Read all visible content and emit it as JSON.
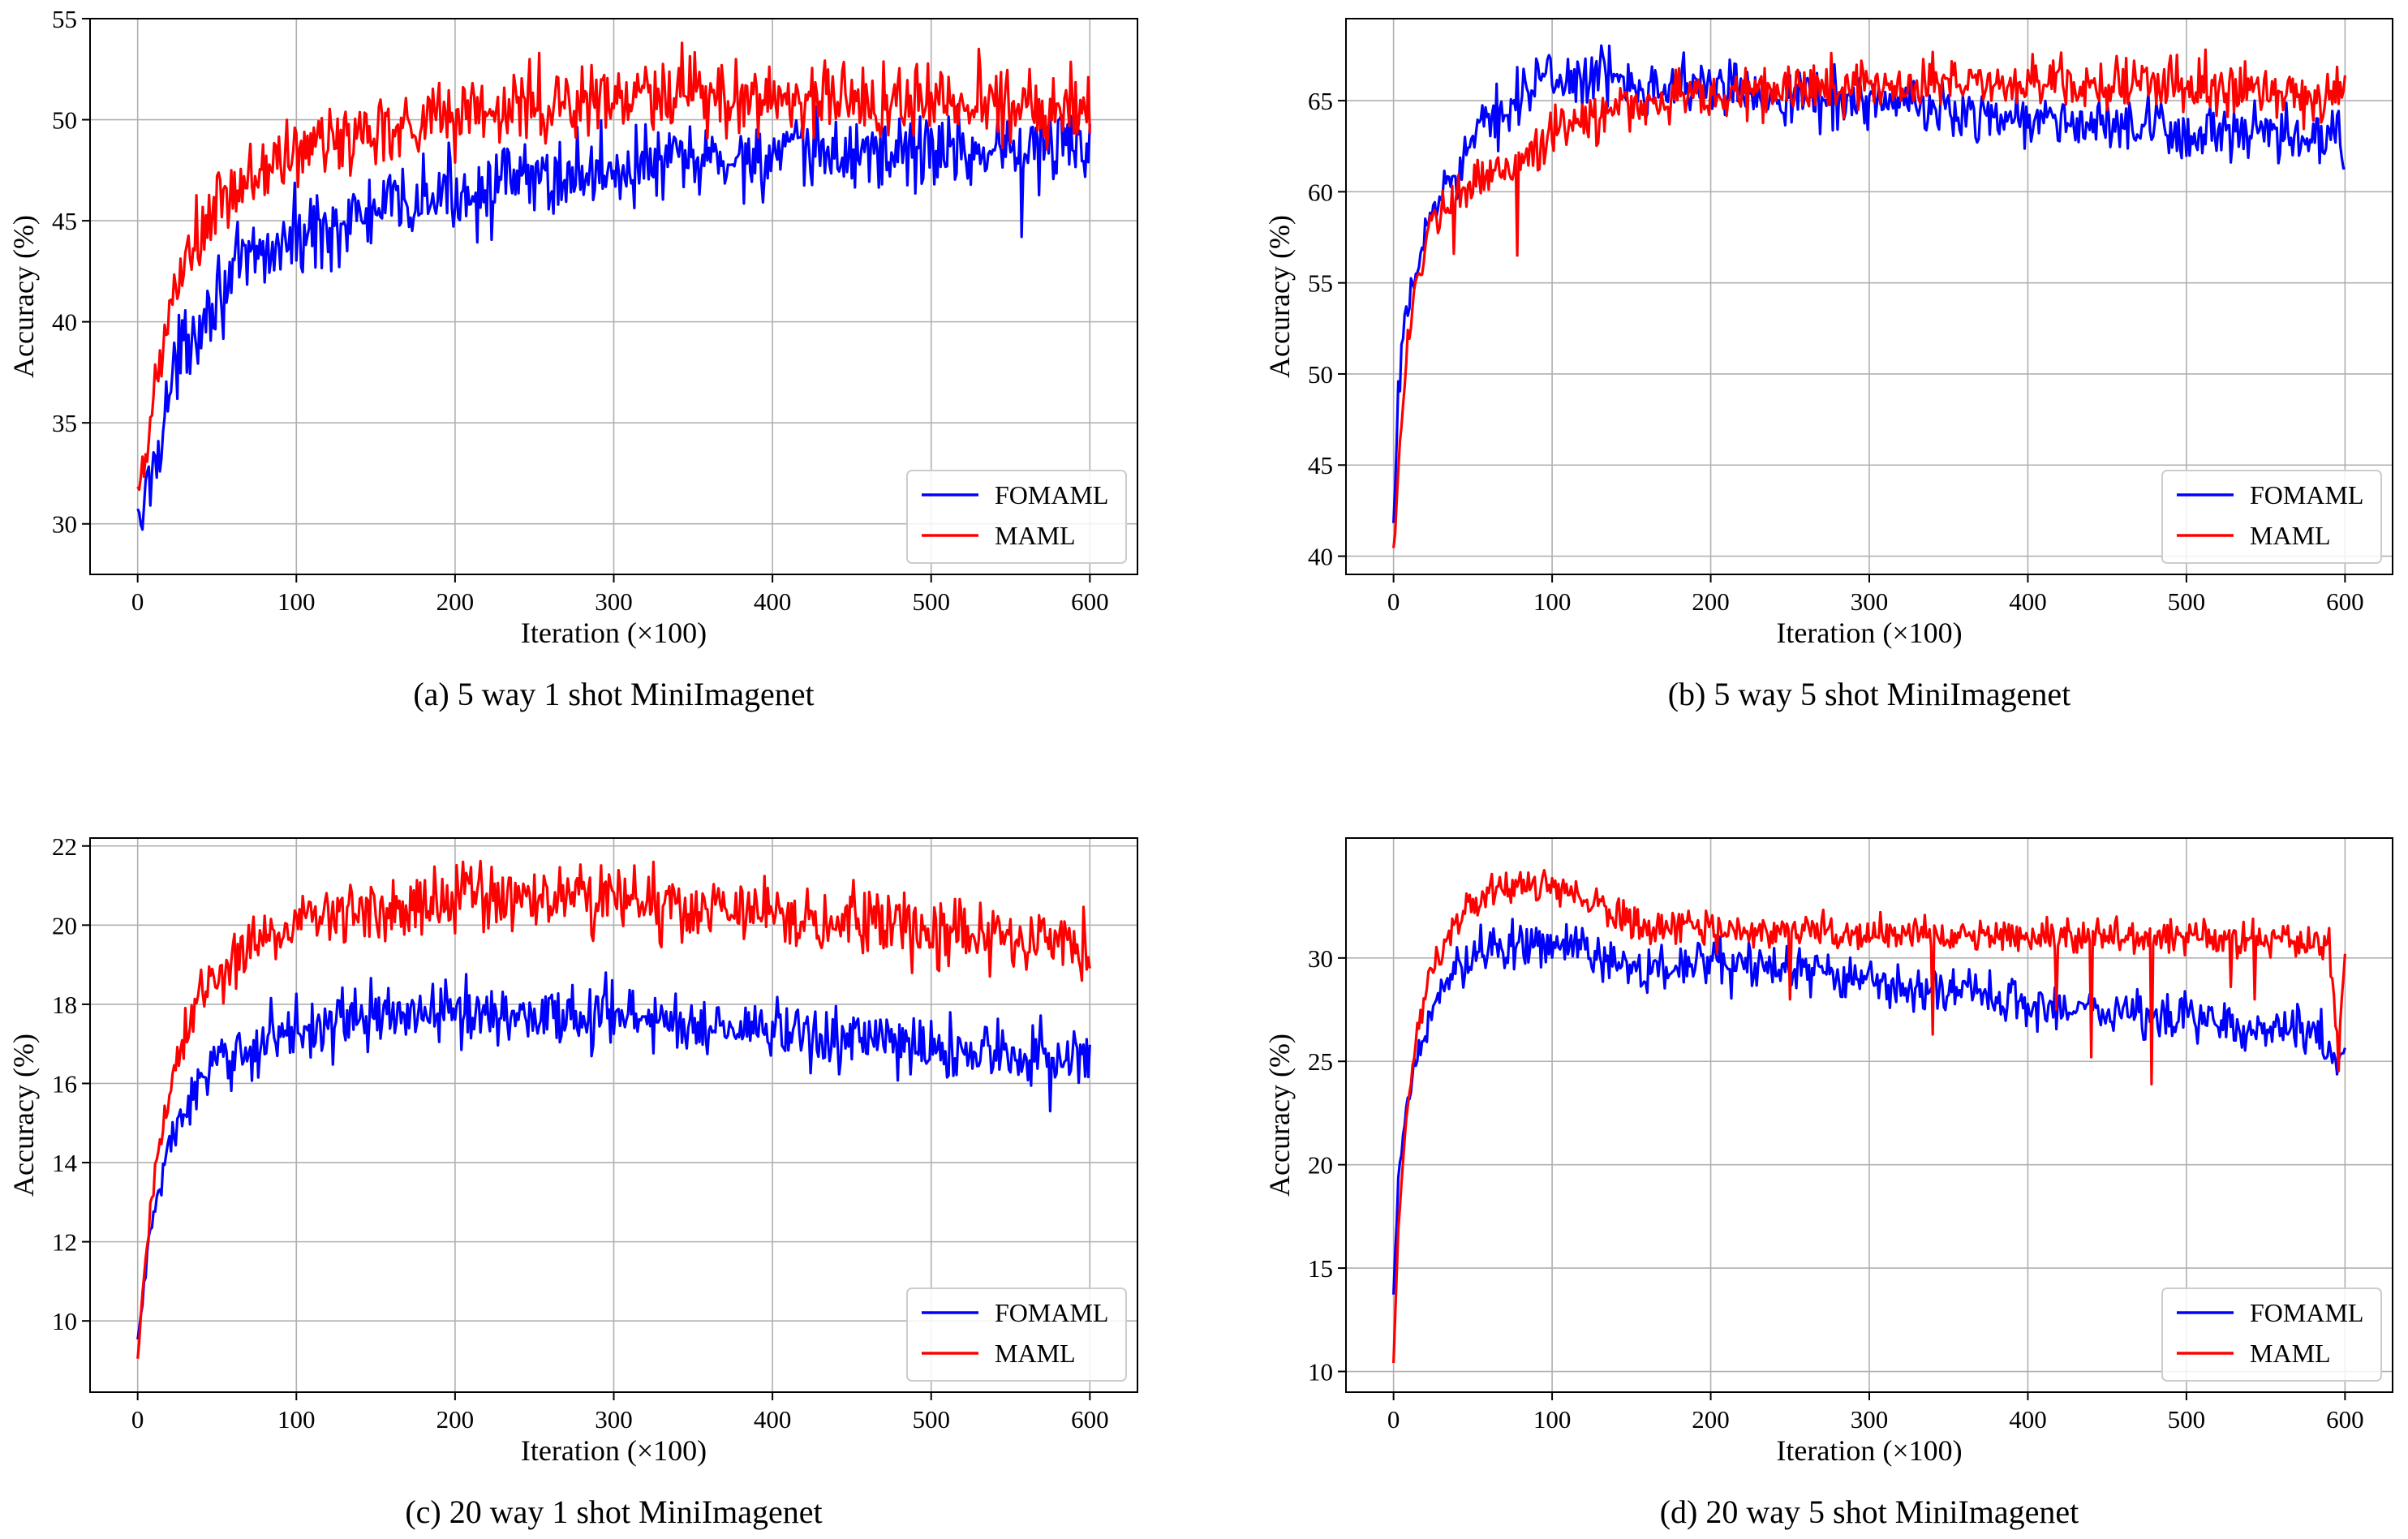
{
  "chart_data": [
    {
      "type": "line",
      "caption": "(a) 5 way 1 shot MiniImagenet",
      "xlabel": "Iteration (×100)",
      "ylabel": "Accuracy (%)",
      "xlim": [
        -30,
        630
      ],
      "ylim": [
        27.5,
        55
      ],
      "xticks": [
        0,
        100,
        200,
        300,
        400,
        500,
        600
      ],
      "yticks": [
        30,
        35,
        40,
        45,
        50,
        55
      ],
      "grid": true,
      "legend_position": "bottom-right",
      "series": [
        {
          "name": "FOMAML",
          "color": "#0000ff",
          "profile": [
            [
              0,
              29.5
            ],
            [
              3,
              30.5
            ],
            [
              10,
              33
            ],
            [
              20,
              36.5
            ],
            [
              30,
              39
            ],
            [
              50,
              41.5
            ],
            [
              75,
              43.2
            ],
            [
              100,
              44.2
            ],
            [
              150,
              45.4
            ],
            [
              200,
              46.4
            ],
            [
              300,
              47.6
            ],
            [
              400,
              48.2
            ],
            [
              500,
              48.5
            ],
            [
              600,
              48.7
            ]
          ],
          "noise": 1.4,
          "noise_start": 1.0,
          "spikes": [
            [
              557,
              44.2
            ]
          ]
        },
        {
          "name": "MAML",
          "color": "#ff0000",
          "profile": [
            [
              0,
              30.5
            ],
            [
              3,
              32
            ],
            [
              10,
              36
            ],
            [
              20,
              40.5
            ],
            [
              30,
              43
            ],
            [
              50,
              45.5
            ],
            [
              75,
              47.3
            ],
            [
              100,
              48.4
            ],
            [
              150,
              49.6
            ],
            [
              200,
              50.3
            ],
            [
              300,
              51.0
            ],
            [
              400,
              51.1
            ],
            [
              500,
              50.9
            ],
            [
              600,
              50.8
            ]
          ],
          "noise": 1.4,
          "noise_start": 1.0,
          "spikes": [
            [
              343,
              53.8
            ],
            [
              253,
              53.3
            ],
            [
              530,
              53.5
            ]
          ]
        }
      ]
    },
    {
      "type": "line",
      "caption": "(b) 5 way 5 shot MiniImagenet",
      "xlabel": "Iteration (×100)",
      "ylabel": "Accuracy (%)",
      "xlim": [
        -30,
        630
      ],
      "ylim": [
        39,
        69.5
      ],
      "xticks": [
        0,
        100,
        200,
        300,
        400,
        500,
        600
      ],
      "yticks": [
        40,
        45,
        50,
        55,
        60,
        65
      ],
      "grid": true,
      "legend_position": "bottom-right",
      "series": [
        {
          "name": "FOMAML",
          "color": "#0000ff",
          "profile": [
            [
              0,
              41
            ],
            [
              3,
              49
            ],
            [
              8,
              53
            ],
            [
              15,
              56
            ],
            [
              25,
              59
            ],
            [
              40,
              61.5
            ],
            [
              60,
              63.8
            ],
            [
              80,
              65.5
            ],
            [
              100,
              66.2
            ],
            [
              130,
              66.3
            ],
            [
              170,
              65.9
            ],
            [
              250,
              65.3
            ],
            [
              300,
              65.0
            ],
            [
              400,
              64.0
            ],
            [
              500,
              63.2
            ],
            [
              600,
              62.8
            ]
          ],
          "noise": 1.1,
          "noise_start": 0.6,
          "spikes": [
            [
              90,
              67.3
            ],
            [
              133,
              67.1
            ]
          ]
        },
        {
          "name": "MAML",
          "color": "#ff0000",
          "profile": [
            [
              0,
              40.5
            ],
            [
              3,
              45
            ],
            [
              8,
              51
            ],
            [
              15,
              55.5
            ],
            [
              25,
              58
            ],
            [
              40,
              59.7
            ],
            [
              60,
              60.8
            ],
            [
              80,
              61.9
            ],
            [
              100,
              63.0
            ],
            [
              130,
              64.3
            ],
            [
              170,
              65.1
            ],
            [
              250,
              65.6
            ],
            [
              300,
              65.9
            ],
            [
              400,
              66.0
            ],
            [
              500,
              65.8
            ],
            [
              600,
              65.4
            ]
          ],
          "noise": 1.0,
          "noise_start": 0.6,
          "spikes": [
            [
              38,
              56.6
            ],
            [
              78,
              56.5
            ],
            [
              512,
              67.8
            ],
            [
              585,
              63.8
            ]
          ]
        }
      ]
    },
    {
      "type": "line",
      "caption": "(c) 20 way 1 shot MiniImagenet",
      "xlabel": "Iteration (×100)",
      "ylabel": "Accuracy (%)",
      "xlim": [
        -30,
        630
      ],
      "ylim": [
        8.2,
        22.2
      ],
      "xticks": [
        0,
        100,
        200,
        300,
        400,
        500,
        600
      ],
      "yticks": [
        10,
        12,
        14,
        16,
        18,
        20,
        22
      ],
      "grid": true,
      "legend_position": "bottom-right",
      "series": [
        {
          "name": "FOMAML",
          "color": "#0000ff",
          "profile": [
            [
              0,
              9.5
            ],
            [
              3,
              10.5
            ],
            [
              8,
              12.3
            ],
            [
              15,
              13.6
            ],
            [
              25,
              15.0
            ],
            [
              40,
              16.0
            ],
            [
              60,
              16.7
            ],
            [
              80,
              17.1
            ],
            [
              100,
              17.4
            ],
            [
              150,
              17.7
            ],
            [
              200,
              17.8
            ],
            [
              300,
              17.7
            ],
            [
              400,
              17.3
            ],
            [
              500,
              16.9
            ],
            [
              600,
              16.6
            ]
          ],
          "noise": 0.55,
          "noise_start": 0.3,
          "spikes": [
            [
              295,
              18.8
            ],
            [
              575,
              15.3
            ]
          ]
        },
        {
          "name": "MAML",
          "color": "#ff0000",
          "profile": [
            [
              0,
              9.0
            ],
            [
              3,
              10.5
            ],
            [
              8,
              13.0
            ],
            [
              15,
              14.8
            ],
            [
              25,
              16.5
            ],
            [
              40,
              18.2
            ],
            [
              60,
              19.2
            ],
            [
              80,
              19.7
            ],
            [
              100,
              20.1
            ],
            [
              150,
              20.5
            ],
            [
              200,
              20.7
            ],
            [
              250,
              20.7
            ],
            [
              300,
              20.6
            ],
            [
              400,
              20.2
            ],
            [
              500,
              19.9
            ],
            [
              600,
              19.6
            ]
          ],
          "noise": 0.6,
          "noise_start": 0.3,
          "spikes": [
            [
              205,
              21.6
            ],
            [
              325,
              21.6
            ],
            [
              595,
              18.6
            ]
          ]
        }
      ]
    },
    {
      "type": "line",
      "caption": "(d) 20 way 5 shot MiniImagenet",
      "xlabel": "Iteration (×100)",
      "ylabel": "Accuracy (%)",
      "xlim": [
        -30,
        630
      ],
      "ylim": [
        9,
        35.8
      ],
      "xticks": [
        0,
        100,
        200,
        300,
        400,
        500,
        600
      ],
      "yticks": [
        10,
        15,
        20,
        25,
        30
      ],
      "grid": true,
      "legend_position": "bottom-right",
      "series": [
        {
          "name": "FOMAML",
          "color": "#0000ff",
          "profile": [
            [
              0,
              13.5
            ],
            [
              3,
              19
            ],
            [
              8,
              22.5
            ],
            [
              15,
              25.5
            ],
            [
              25,
              27.5
            ],
            [
              40,
              29.5
            ],
            [
              60,
              30.6
            ],
            [
              80,
              30.8
            ],
            [
              100,
              30.6
            ],
            [
              130,
              30.2
            ],
            [
              150,
              29.4
            ],
            [
              200,
              29.7
            ],
            [
              250,
              29.5
            ],
            [
              300,
              28.8
            ],
            [
              400,
              27.8
            ],
            [
              500,
              27.1
            ],
            [
              580,
              26.5
            ],
            [
              595,
              25.0
            ],
            [
              600,
              25.7
            ]
          ],
          "noise": 0.8,
          "noise_start": 0.5,
          "spikes": [
            [
              55,
              31.6
            ]
          ]
        },
        {
          "name": "MAML",
          "color": "#ff0000",
          "profile": [
            [
              0,
              10.6
            ],
            [
              3,
              17
            ],
            [
              8,
              22.5
            ],
            [
              15,
              26.5
            ],
            [
              25,
              29.5
            ],
            [
              40,
              31.8
            ],
            [
              60,
              33.0
            ],
            [
              80,
              33.5
            ],
            [
              100,
              33.4
            ],
            [
              130,
              32.5
            ],
            [
              150,
              31.8
            ],
            [
              200,
              31.3
            ],
            [
              250,
              31.4
            ],
            [
              300,
              31.2
            ],
            [
              400,
              31.1
            ],
            [
              500,
              31.0
            ],
            [
              590,
              30.8
            ],
            [
              596,
              25.0
            ],
            [
              600,
              30.5
            ]
          ],
          "noise": 0.6,
          "noise_start": 0.4,
          "spikes": [
            [
              250,
              28.0
            ],
            [
              340,
              26.3
            ],
            [
              418,
              27.5
            ],
            [
              440,
              25.2
            ],
            [
              478,
              23.9
            ],
            [
              528,
              28.6
            ],
            [
              543,
              28.0
            ],
            [
              560,
              30.8
            ]
          ]
        }
      ]
    }
  ]
}
